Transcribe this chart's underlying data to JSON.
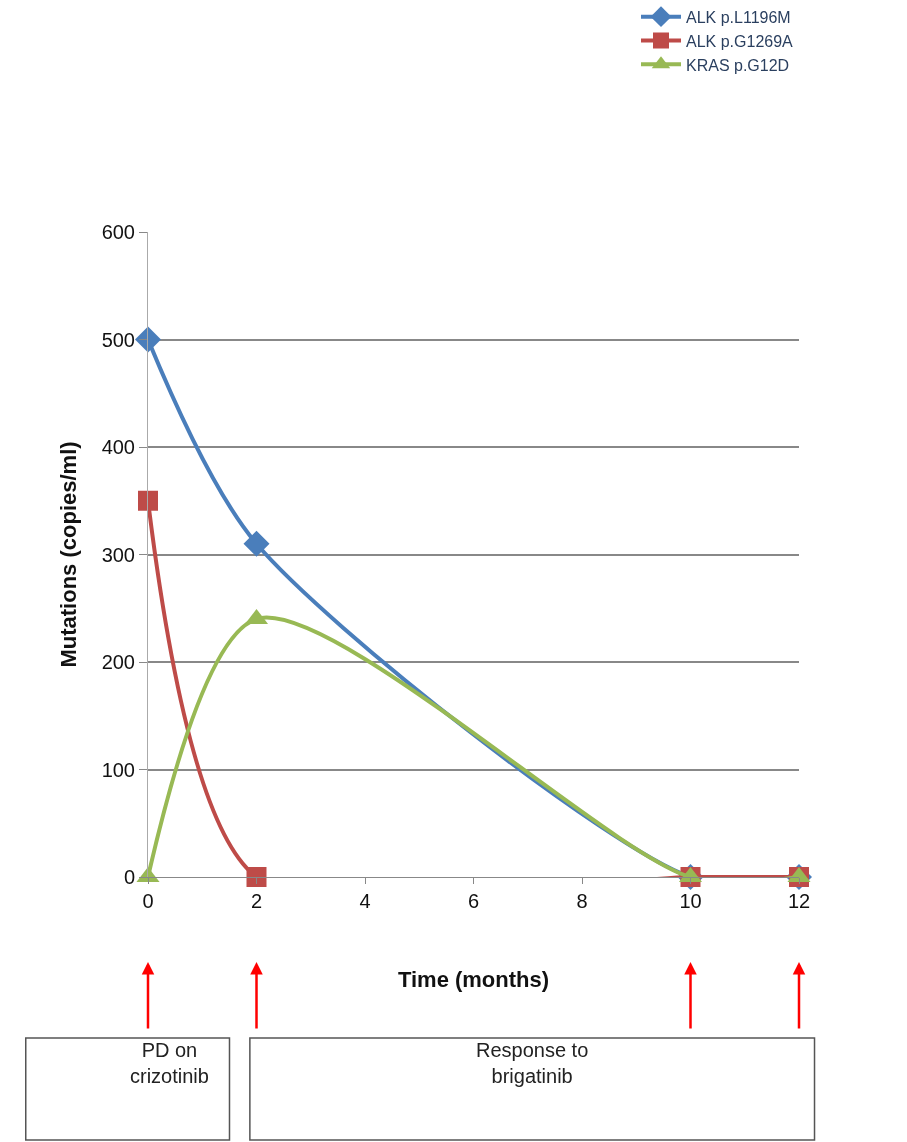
{
  "chart_data": {
    "type": "line",
    "xlabel": "Time (months)",
    "ylabel": "Mutations (copies/ml)",
    "x": [
      0,
      2,
      10,
      12
    ],
    "series": [
      {
        "name": "ALK p.L1196M",
        "color": "#4a7ebb",
        "marker": "diamond",
        "values": [
          500,
          310,
          0,
          0
        ]
      },
      {
        "name": "ALK p.G1269A",
        "color": "#be4b48",
        "marker": "square",
        "values": [
          350,
          0,
          0,
          0
        ]
      },
      {
        "name": "KRAS p.G12D",
        "color": "#98b954",
        "marker": "triangle",
        "values": [
          0,
          240,
          0,
          0
        ]
      }
    ],
    "xlim": [
      0,
      12
    ],
    "xticks": [
      0,
      2,
      4,
      6,
      8,
      10,
      12
    ],
    "ylim": [
      0,
      600
    ],
    "yticks": [
      0,
      100,
      200,
      300,
      400,
      500,
      600
    ],
    "grid": "y",
    "legend": "top right",
    "line_style": "solid",
    "annotations": [
      "PD on\ncrizotinib",
      "Response to\nbrigatinib"
    ]
  }
}
